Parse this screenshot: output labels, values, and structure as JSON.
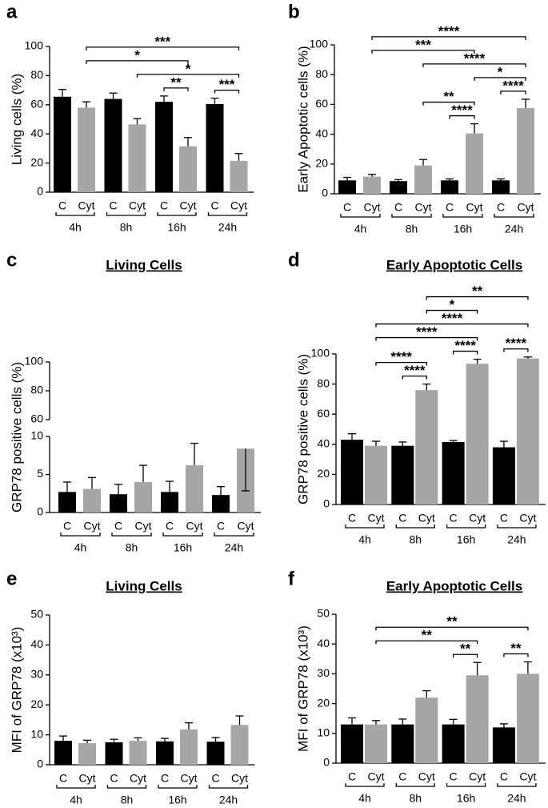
{
  "chart_data": [
    {
      "type": "bar",
      "panel": "a",
      "ylabel": "Living cells (%)",
      "categories": [
        "C",
        "Cyt",
        "C",
        "Cyt",
        "C",
        "Cyt",
        "C",
        "Cyt"
      ],
      "groups": [
        "4h",
        "8h",
        "16h",
        "24h"
      ],
      "values": [
        65.5,
        58,
        64,
        46.5,
        62,
        31.5,
        60.5,
        21.5
      ],
      "errors": [
        5,
        4,
        4,
        4,
        4,
        6,
        4,
        5
      ],
      "colors": [
        "#000000",
        "#a6a6a6",
        "#000000",
        "#a6a6a6",
        "#000000",
        "#a6a6a6",
        "#000000",
        "#a6a6a6"
      ],
      "ylim": [
        0,
        100
      ],
      "yticks": [
        0,
        20,
        40,
        60,
        80,
        100
      ],
      "comparisons": [
        {
          "from": 4,
          "to": 5,
          "label": "**"
        },
        {
          "from": 6,
          "to": 7,
          "label": "***"
        },
        {
          "from": 3,
          "to": 7,
          "label": "*"
        },
        {
          "from": 1,
          "to": 5,
          "label": "*"
        },
        {
          "from": 1,
          "to": 7,
          "label": "***"
        }
      ]
    },
    {
      "type": "bar",
      "panel": "b",
      "ylabel": "Early Apoptotic cells (%)",
      "categories": [
        "C",
        "Cyt",
        "C",
        "Cyt",
        "C",
        "Cyt",
        "C",
        "Cyt"
      ],
      "groups": [
        "4h",
        "8h",
        "16h",
        "24h"
      ],
      "values": [
        9,
        11.5,
        8.5,
        19,
        9,
        40.5,
        9,
        57.5
      ],
      "errors": [
        2,
        1.5,
        1,
        4,
        1,
        6.5,
        1,
        6
      ],
      "colors": [
        "#000000",
        "#a6a6a6",
        "#000000",
        "#a6a6a6",
        "#000000",
        "#a6a6a6",
        "#000000",
        "#a6a6a6"
      ],
      "ylim": [
        0,
        100
      ],
      "yticks": [
        0,
        20,
        40,
        60,
        80,
        100
      ],
      "comparisons": [
        {
          "from": 4,
          "to": 5,
          "label": "****"
        },
        {
          "from": 6,
          "to": 7,
          "label": "****"
        },
        {
          "from": 3,
          "to": 5,
          "label": "**"
        },
        {
          "from": 5,
          "to": 7,
          "label": "*"
        },
        {
          "from": 3,
          "to": 7,
          "label": "****"
        },
        {
          "from": 1,
          "to": 5,
          "label": "***"
        },
        {
          "from": 1,
          "to": 7,
          "label": "****"
        }
      ]
    },
    {
      "type": "bar",
      "panel": "c",
      "title": "Living Cells",
      "ylabel": "GRP78 positive cells (%)",
      "categories": [
        "C",
        "Cyt",
        "C",
        "Cyt",
        "C",
        "Cyt",
        "C",
        "Cyt"
      ],
      "groups": [
        "4h",
        "8h",
        "16h",
        "24h"
      ],
      "values": [
        2.7,
        3.1,
        2.4,
        4,
        2.7,
        6.2,
        2.3,
        8.4
      ],
      "errors": [
        1.3,
        1.5,
        1.3,
        2.2,
        1.4,
        2.9,
        1.1,
        2.2
      ],
      "colors": [
        "#000000",
        "#a6a6a6",
        "#000000",
        "#a6a6a6",
        "#000000",
        "#a6a6a6",
        "#000000",
        "#a6a6a6"
      ],
      "ylim": [
        0,
        10
      ],
      "yticks": [
        0,
        5,
        10
      ],
      "upper_ylim": [
        60,
        100
      ],
      "upper_yticks": [
        60,
        80,
        100
      ],
      "comparisons": []
    },
    {
      "type": "bar",
      "panel": "d",
      "title": "Early Apoptotic Cells",
      "ylabel": "GRP78 positive cells (%)",
      "categories": [
        "C",
        "Cyt",
        "C",
        "Cyt",
        "C",
        "Cyt",
        "C",
        "Cyt"
      ],
      "groups": [
        "4h",
        "8h",
        "16h",
        "24h"
      ],
      "values": [
        43,
        39,
        39,
        76,
        41.5,
        93.5,
        38,
        97
      ],
      "errors": [
        4,
        3,
        2.5,
        4,
        1,
        3,
        4,
        1
      ],
      "colors": [
        "#000000",
        "#a6a6a6",
        "#000000",
        "#a6a6a6",
        "#000000",
        "#a6a6a6",
        "#000000",
        "#a6a6a6"
      ],
      "ylim": [
        0,
        100
      ],
      "yticks": [
        0,
        20,
        40,
        60,
        80,
        100
      ],
      "comparisons": [
        {
          "from": 2,
          "to": 3,
          "label": "****"
        },
        {
          "from": 4,
          "to": 5,
          "label": "****"
        },
        {
          "from": 6,
          "to": 7,
          "label": "****"
        },
        {
          "from": 1,
          "to": 3,
          "label": "****"
        },
        {
          "from": 1,
          "to": 5,
          "label": "****"
        },
        {
          "from": 1,
          "to": 7,
          "label": "****"
        },
        {
          "from": 3,
          "to": 5,
          "label": "*"
        },
        {
          "from": 3,
          "to": 7,
          "label": "**"
        }
      ]
    },
    {
      "type": "bar",
      "panel": "e",
      "title": "Living Cells",
      "ylabel": "MFI of GRP78 (x10³)",
      "categories": [
        "C",
        "Cyt",
        "C",
        "Cyt",
        "C",
        "Cyt",
        "C",
        "Cyt"
      ],
      "groups": [
        "4h",
        "8h",
        "16h",
        "24h"
      ],
      "values": [
        8,
        7.2,
        7.5,
        8,
        7.8,
        11.8,
        7.7,
        13.3
      ],
      "errors": [
        1.6,
        1,
        1,
        1,
        1,
        2.2,
        1.4,
        3
      ],
      "colors": [
        "#000000",
        "#a6a6a6",
        "#000000",
        "#a6a6a6",
        "#000000",
        "#a6a6a6",
        "#000000",
        "#a6a6a6"
      ],
      "ylim": [
        0,
        50
      ],
      "yticks": [
        0,
        10,
        20,
        30,
        40,
        50
      ],
      "comparisons": []
    },
    {
      "type": "bar",
      "panel": "f",
      "title": "Early Apoptotic Cells",
      "ylabel": "MFI of GRP78 (x10³)",
      "categories": [
        "C",
        "Cyt",
        "C",
        "Cyt",
        "C",
        "Cyt",
        "C",
        "Cyt"
      ],
      "groups": [
        "4h",
        "8h",
        "16h",
        "24h"
      ],
      "values": [
        13,
        13,
        13,
        22,
        13,
        29.5,
        12,
        30
      ],
      "errors": [
        2.2,
        1.3,
        1.8,
        2.3,
        1.7,
        4.3,
        1.2,
        4
      ],
      "colors": [
        "#000000",
        "#a6a6a6",
        "#000000",
        "#a6a6a6",
        "#000000",
        "#a6a6a6",
        "#000000",
        "#a6a6a6"
      ],
      "ylim": [
        0,
        50
      ],
      "yticks": [
        0,
        10,
        20,
        30,
        40,
        50
      ],
      "comparisons": [
        {
          "from": 4,
          "to": 5,
          "label": "**"
        },
        {
          "from": 6,
          "to": 7,
          "label": "**"
        },
        {
          "from": 1,
          "to": 5,
          "label": "**"
        },
        {
          "from": 1,
          "to": 7,
          "label": "**"
        }
      ]
    }
  ]
}
